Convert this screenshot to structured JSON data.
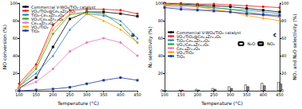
{
  "chart_data": [
    {
      "type": "line",
      "label": "a",
      "x_label": "Temperature (°C)",
      "y_label": "NO conversion (%)",
      "x": [
        100,
        150,
        200,
        250,
        300,
        350,
        400,
        450
      ],
      "xlim": [
        100,
        450
      ],
      "xticks": [
        100,
        150,
        200,
        250,
        300,
        350,
        400,
        450
      ],
      "ylim": [
        0,
        100
      ],
      "yticks": [
        0,
        20,
        40,
        60,
        80,
        100
      ],
      "legend": "upper left",
      "series": [
        {
          "name": "Commercial V-WO₃/TiO₂ catalyst",
          "color": "#000000",
          "marker": "rect",
          "values": [
            3,
            15,
            50,
            82,
            90,
            90,
            88,
            85
          ]
        },
        {
          "name": "VOₓ/TiO₂@Ce₀.₈Zr₀.₂O₂",
          "color": "#e41a1c",
          "marker": "circle",
          "values": [
            8,
            30,
            75,
            92,
            93,
            93,
            92,
            88
          ]
        },
        {
          "name": "TiO₂-Ce₀.₈Zr₀.₂O₂",
          "color": "#377eb8",
          "marker": "triangle",
          "values": [
            5,
            20,
            40,
            70,
            88,
            86,
            80,
            60
          ]
        },
        {
          "name": "VOₓ/Ce₀.₈Zr₀.₂O₂",
          "color": "#2ca02c",
          "marker": "diamond",
          "values": [
            5,
            25,
            65,
            87,
            90,
            88,
            75,
            55
          ]
        },
        {
          "name": "Ce₀.₈Zr₀.₂O₂",
          "color": "#e377c2",
          "marker": "circle",
          "values": [
            3,
            10,
            25,
            45,
            55,
            60,
            55,
            40
          ]
        },
        {
          "name": "VOₓ/TiO₂",
          "color": "#ff9900",
          "marker": "triangle",
          "values": [
            5,
            28,
            70,
            88,
            88,
            80,
            70,
            55
          ]
        },
        {
          "name": "TiO₂",
          "color": "#1f3a93",
          "marker": "rect",
          "values": [
            0,
            1,
            2,
            4,
            8,
            12,
            15,
            12
          ]
        }
      ]
    },
    {
      "type": "line",
      "label": "c",
      "x_label": "Temperature (°C)",
      "y_label": "N₂ selectivity (%)",
      "y2_label": "NOₓ and N₂O selectivity (%)",
      "x": [
        100,
        150,
        200,
        250,
        300,
        350,
        400,
        450
      ],
      "xlim": [
        100,
        450
      ],
      "xticks": [
        100,
        150,
        200,
        250,
        300,
        350,
        400,
        450
      ],
      "ylim": [
        0,
        100
      ],
      "yticks": [
        0,
        20,
        40,
        60,
        80,
        100
      ],
      "y2lim": [
        0,
        100
      ],
      "y2ticks": [
        0,
        20,
        40,
        60,
        80,
        100
      ],
      "legend": "center left",
      "series": [
        {
          "name": "Commercial V-WO₃/TiO₂ catalyst",
          "color": "#000000",
          "marker": "rect",
          "values": [
            100,
            99,
            98,
            97,
            96,
            94,
            92,
            90
          ]
        },
        {
          "name": "VOₓ/TiO₂@Ce₀.₈Zr₀.₂O₂",
          "color": "#e41a1c",
          "marker": "circle",
          "values": [
            100,
            100,
            99,
            99,
            98,
            97,
            96,
            95
          ]
        },
        {
          "name": "TiO₂-Ce₀.₈Zr₀.₂O₂",
          "color": "#377eb8",
          "marker": "triangle",
          "values": [
            98,
            97,
            96,
            95,
            93,
            92,
            90,
            88
          ]
        },
        {
          "name": "VOₓ/Ce₀.₈Zr₀.₂O₂",
          "color": "#2ca02c",
          "marker": "diamond",
          "values": [
            99,
            98,
            97,
            95,
            93,
            90,
            87,
            84
          ]
        },
        {
          "name": "Ce₀.₈Zr₀.₂O₂",
          "color": "#e377c2",
          "marker": "circle",
          "values": [
            97,
            95,
            93,
            92,
            90,
            88,
            86,
            85
          ]
        },
        {
          "name": "VOₓ/TiO₂",
          "color": "#ff9900",
          "marker": "triangle",
          "values": [
            99,
            98,
            96,
            93,
            90,
            86,
            83,
            80
          ]
        },
        {
          "name": "TiO₂",
          "color": "#1f3a93",
          "marker": "rect",
          "values": [
            95,
            93,
            92,
            91,
            90,
            88,
            87,
            86
          ]
        },
        {
          "name": "N₂O",
          "type": "bar",
          "axis": "y2",
          "color": "#ffffff",
          "values": [
            0,
            1,
            2,
            3,
            5,
            7,
            9,
            10
          ]
        },
        {
          "name": "NO₂",
          "type": "bar",
          "axis": "y2",
          "color": "#888888",
          "values": [
            0,
            1,
            1,
            2,
            3,
            5,
            6,
            8
          ]
        }
      ]
    }
  ]
}
